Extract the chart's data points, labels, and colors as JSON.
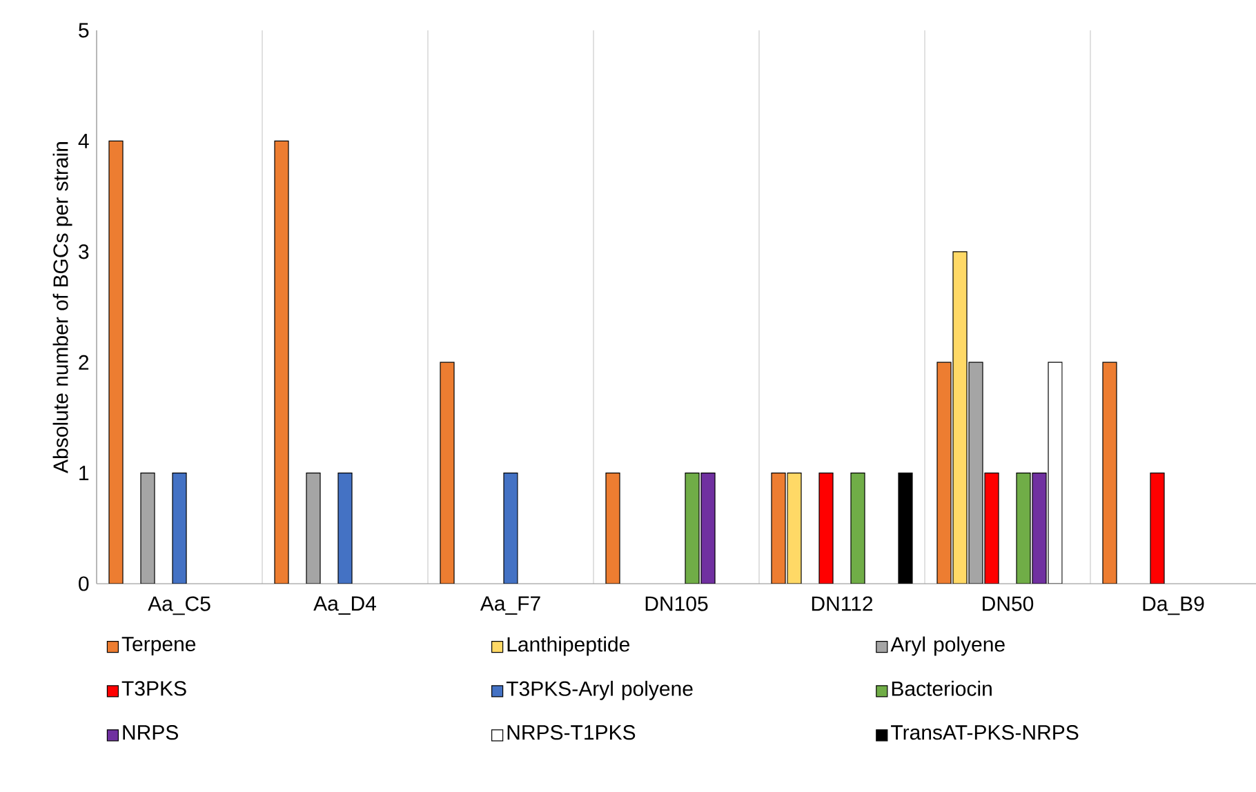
{
  "chart_data": {
    "type": "bar",
    "ylabel": "Absolute number of BGCs per strain",
    "categories": [
      "Aa_C5",
      "Aa_D4",
      "Aa_F7",
      "DN105",
      "DN112",
      "DN50",
      "Da_B9"
    ],
    "series": [
      {
        "name": "Terpene",
        "color": "#ed7d31",
        "values": [
          4,
          4,
          2,
          1,
          1,
          2,
          2
        ]
      },
      {
        "name": "Lanthipeptide",
        "color": "#ffd966",
        "values": [
          null,
          null,
          null,
          null,
          1,
          3,
          null
        ]
      },
      {
        "name": "Aryl polyene",
        "color": "#a5a5a5",
        "values": [
          1,
          1,
          null,
          null,
          null,
          2,
          null
        ]
      },
      {
        "name": "T3PKS",
        "color": "#ff0000",
        "values": [
          null,
          null,
          null,
          null,
          1,
          1,
          1
        ]
      },
      {
        "name": "T3PKS-Aryl polyene",
        "color": "#4472c4",
        "values": [
          1,
          1,
          1,
          null,
          null,
          null,
          null
        ]
      },
      {
        "name": "Bacteriocin",
        "color": "#70ad47",
        "values": [
          null,
          null,
          null,
          1,
          1,
          1,
          null
        ]
      },
      {
        "name": "NRPS",
        "color": "#7030a0",
        "values": [
          null,
          null,
          null,
          1,
          null,
          1,
          null
        ]
      },
      {
        "name": "NRPS-T1PKS",
        "color": "#ffffff",
        "values": [
          null,
          null,
          null,
          null,
          null,
          2,
          null
        ]
      },
      {
        "name": "TransAT-PKS-NRPS",
        "color": "#000000",
        "values": [
          null,
          null,
          null,
          null,
          1,
          null,
          null
        ]
      }
    ],
    "ylim": [
      0,
      5
    ],
    "yticks": [
      0,
      1,
      2,
      3,
      4,
      5
    ],
    "grid": "x",
    "legend": "bottom"
  }
}
